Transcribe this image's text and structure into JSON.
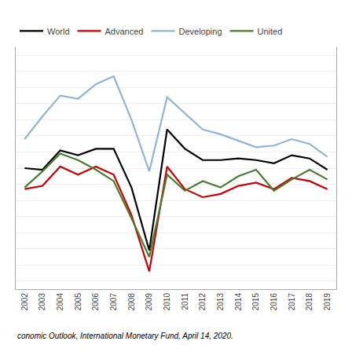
{
  "chart_data": {
    "type": "line",
    "x": [
      2002,
      2003,
      2004,
      2005,
      2006,
      2007,
      2008,
      2009,
      2010,
      2011,
      2012,
      2013,
      2014,
      2015,
      2016,
      2017,
      2018,
      2019
    ],
    "series": [
      {
        "name": "World",
        "color": "#000000",
        "values": [
          3.0,
          2.9,
          4.1,
          3.8,
          4.2,
          4.2,
          1.8,
          -2.1,
          5.4,
          4.2,
          3.5,
          3.5,
          3.6,
          3.5,
          3.3,
          3.8,
          3.6,
          2.9
        ]
      },
      {
        "name": "Advanced",
        "color": "#cc0000",
        "values": [
          1.7,
          1.9,
          3.1,
          2.6,
          3.1,
          2.6,
          0.1,
          -3.4,
          3.1,
          1.7,
          1.2,
          1.4,
          1.9,
          2.1,
          1.7,
          2.4,
          2.2,
          1.7
        ]
      },
      {
        "name": "Developing",
        "color": "#92b4d4",
        "values": [
          4.8,
          6.2,
          7.5,
          7.3,
          8.2,
          8.7,
          6.0,
          2.8,
          7.4,
          6.4,
          5.4,
          5.1,
          4.7,
          4.3,
          4.4,
          4.8,
          4.5,
          3.7
        ]
      },
      {
        "name": "United",
        "color": "#4a7c2f",
        "values": [
          1.8,
          2.8,
          3.9,
          3.5,
          2.9,
          2.2,
          -0.1,
          -2.5,
          2.6,
          1.6,
          2.2,
          1.8,
          2.5,
          2.9,
          1.6,
          2.3,
          2.9,
          2.3
        ]
      }
    ],
    "xlim": [
      2001.5,
      2019.5
    ],
    "xticks": [
      2002,
      2003,
      2004,
      2005,
      2006,
      2007,
      2008,
      2009,
      2010,
      2011,
      2012,
      2013,
      2014,
      2015,
      2016,
      2017,
      2018,
      2019
    ],
    "ylim": [
      -4.5,
      10.5
    ],
    "yticks": [
      -4,
      -3,
      -2,
      -1,
      0,
      1,
      2,
      3,
      4,
      5,
      6,
      7,
      8,
      9,
      10
    ],
    "grid": true,
    "tick_labels": "x",
    "legend": "upper left",
    "annotations": [
      "conomic Outlook, International Monetary Fund, April 14, 2020."
    ]
  }
}
